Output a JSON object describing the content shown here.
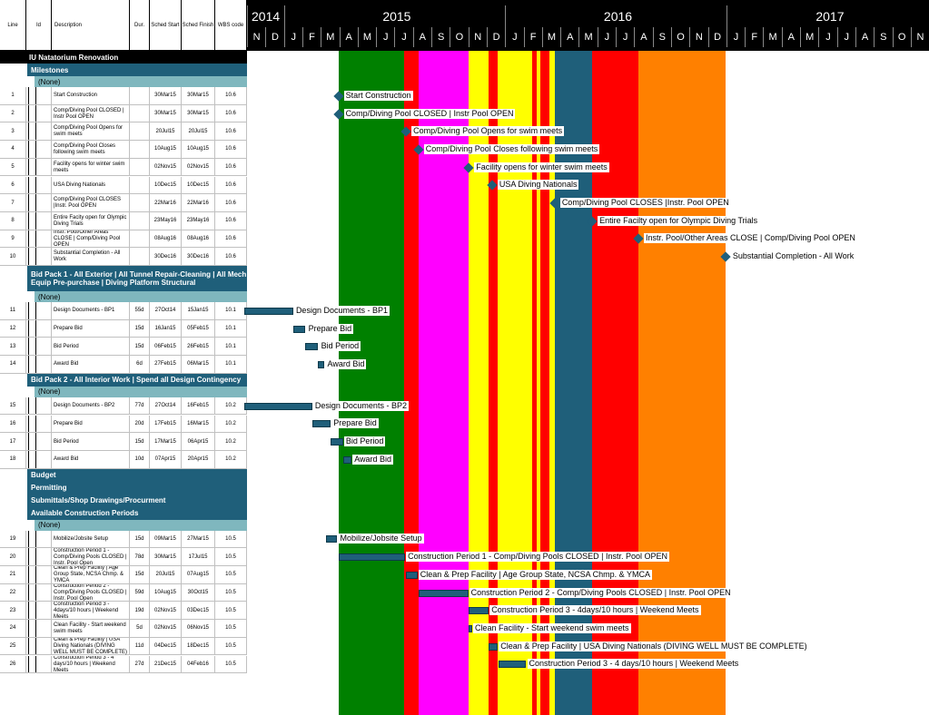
{
  "columns": {
    "line": "Line",
    "id": "Id",
    "description": "Description",
    "duration": "Dur.",
    "start": "Sched Start",
    "finish": "Sched Finish",
    "wbs": "WBS code"
  },
  "timeline": {
    "years": [
      "2014",
      "2015",
      "2016",
      "2017"
    ],
    "months": [
      "N",
      "D",
      "J",
      "F",
      "M",
      "A",
      "M",
      "J",
      "J",
      "A",
      "S",
      "O",
      "N",
      "D",
      "J",
      "F",
      "M",
      "A",
      "M",
      "J",
      "J",
      "A",
      "S",
      "O",
      "N",
      "D",
      "J",
      "F",
      "M",
      "A",
      "M",
      "J",
      "J",
      "A",
      "S",
      "O",
      "N"
    ],
    "period_colors": {
      "green": "#008000",
      "red": "#ff0000",
      "magenta": "#ff00ff",
      "yellow": "#ffff00",
      "blue": "#1f5f7a",
      "orange": "#ff8000"
    }
  },
  "project": {
    "title": "IU Natatorium Renovation"
  },
  "rows": [
    {
      "kind": "band",
      "label": "Milestones"
    },
    {
      "kind": "none",
      "label": "(None)"
    },
    {
      "kind": "task",
      "line": "1",
      "desc": "Start Construction",
      "dur": "",
      "start": "30Mar15",
      "finish": "30Mar15",
      "wbs": "10.6",
      "label": "Start Construction"
    },
    {
      "kind": "task",
      "line": "2",
      "desc": "Comp/Diving Pool CLOSED | Instr Pool OPEN",
      "dur": "",
      "start": "30Mar15",
      "finish": "30Mar15",
      "wbs": "10.6",
      "label": "Comp/Diving Pool CLOSED | Instr Pool OPEN"
    },
    {
      "kind": "task",
      "line": "3",
      "desc": "Comp/Diving Pool Opens for swim meets",
      "dur": "",
      "start": "20Jul15",
      "finish": "20Jul15",
      "wbs": "10.6",
      "label": "Comp/Diving Pool Opens for swim meets"
    },
    {
      "kind": "task",
      "line": "4",
      "desc": "Comp/Diving Pool Closes following swim meets",
      "dur": "",
      "start": "10Aug15",
      "finish": "10Aug15",
      "wbs": "10.6",
      "label": "Comp/Diving Pool Closes following swim meets"
    },
    {
      "kind": "task",
      "line": "5",
      "desc": "Facility opens for winter swim meets",
      "dur": "",
      "start": "02Nov15",
      "finish": "02Nov15",
      "wbs": "10.6",
      "label": "Facility opens for winter swim meets"
    },
    {
      "kind": "task",
      "line": "6",
      "desc": "USA Diving Nationals",
      "dur": "",
      "start": "10Dec15",
      "finish": "10Dec15",
      "wbs": "10.6",
      "label": "USA Diving Nationals"
    },
    {
      "kind": "task",
      "line": "7",
      "desc": "Comp/Diving Pool CLOSES |Instr. Pool OPEN",
      "dur": "",
      "start": "22Mar16",
      "finish": "22Mar16",
      "wbs": "10.6",
      "label": "Comp/Diving Pool CLOSES |Instr. Pool OPEN"
    },
    {
      "kind": "task",
      "line": "8",
      "desc": "Entire Facity open for Olympic Diving Trials",
      "dur": "",
      "start": "23May16",
      "finish": "23May16",
      "wbs": "10.6",
      "label": "Entire Facilty open for Olympic Diving Trials"
    },
    {
      "kind": "task",
      "line": "9",
      "desc": "Instr. Pool/Other Areas CLOSE | Comp/Diving Pool OPEN",
      "dur": "",
      "start": "08Aug16",
      "finish": "08Aug16",
      "wbs": "10.6",
      "label": "Instr. Pool/Other Areas CLOSE | Comp/Diving Pool OPEN"
    },
    {
      "kind": "task",
      "line": "10",
      "desc": "Substantial Completion - All Work",
      "dur": "",
      "start": "30Dec16",
      "finish": "30Dec16",
      "wbs": "10.6",
      "label": "Substantial Completion - All Work"
    },
    {
      "kind": "band",
      "label": "Bid Pack 1 - All Exterior | All Tunnel Repair-Cleaning | All Mech Equip Pre-purchase | Diving Platform Structural"
    },
    {
      "kind": "none",
      "label": "(None)"
    },
    {
      "kind": "task",
      "line": "11",
      "desc": "Design Documents - BP1",
      "dur": "55d",
      "start": "27Oct14",
      "finish": "15Jan15",
      "wbs": "10.1",
      "label": "Design Documents - BP1"
    },
    {
      "kind": "task",
      "line": "12",
      "desc": "Prepare Bid",
      "dur": "15d",
      "start": "16Jan15",
      "finish": "05Feb15",
      "wbs": "10.1",
      "label": "Prepare Bid"
    },
    {
      "kind": "task",
      "line": "13",
      "desc": "Bid Period",
      "dur": "15d",
      "start": "06Feb15",
      "finish": "26Feb15",
      "wbs": "10.1",
      "label": "Bid Period"
    },
    {
      "kind": "task",
      "line": "14",
      "desc": "Award Bid",
      "dur": "6d",
      "start": "27Feb15",
      "finish": "06Mar15",
      "wbs": "10.1",
      "label": "Award Bid"
    },
    {
      "kind": "band",
      "label": "Bid Pack 2 - All Interior Work | Spend all Design Contingency"
    },
    {
      "kind": "none",
      "label": "(None)"
    },
    {
      "kind": "task",
      "line": "15",
      "desc": "Design Documents - BP2",
      "dur": "77d",
      "start": "27Oct14",
      "finish": "16Feb15",
      "wbs": "10.2",
      "label": "Design Documents - BP2"
    },
    {
      "kind": "task",
      "line": "16",
      "desc": "Prepare Bid",
      "dur": "20d",
      "start": "17Feb15",
      "finish": "16Mar15",
      "wbs": "10.2",
      "label": "Prepare Bid"
    },
    {
      "kind": "task",
      "line": "17",
      "desc": "Bid Period",
      "dur": "15d",
      "start": "17Mar15",
      "finish": "06Apr15",
      "wbs": "10.2",
      "label": "Bid Period"
    },
    {
      "kind": "task",
      "line": "18",
      "desc": "Award Bid",
      "dur": "10d",
      "start": "07Apr15",
      "finish": "20Apr15",
      "wbs": "10.2",
      "label": "Award Bid"
    },
    {
      "kind": "band",
      "label": "Budget"
    },
    {
      "kind": "band",
      "label": "Permitting"
    },
    {
      "kind": "band",
      "label": "Submittals/Shop Drawings/Procurment"
    },
    {
      "kind": "band",
      "label": "Available Construction Periods"
    },
    {
      "kind": "none",
      "label": "(None)"
    },
    {
      "kind": "task",
      "line": "19",
      "desc": "Mobilize/Jobsite Setup",
      "dur": "15d",
      "start": "09Mar15",
      "finish": "27Mar15",
      "wbs": "10.5",
      "label": "Mobilize/Jobsite Setup"
    },
    {
      "kind": "task",
      "line": "20",
      "desc": "Construction Period 1 - Comp/Diving Pools CLOSED | Instr. Pool Open",
      "dur": "78d",
      "start": "30Mar15",
      "finish": "17Jul15",
      "wbs": "10.5",
      "label": "Construction Period 1 - Comp/Diving Pools CLOSED | Instr. Pool OPEN"
    },
    {
      "kind": "task",
      "line": "21",
      "desc": "Clean & Prep Facility | Age Group State, NCSA Chmp. & YMCA",
      "dur": "15d",
      "start": "20Jul15",
      "finish": "07Aug15",
      "wbs": "10.5",
      "label": "Clean & Prep Facility | Age Group State, NCSA Chmp. & YMCA"
    },
    {
      "kind": "task",
      "line": "22",
      "desc": "Construction Period 2 - Comp/Diving Pools CLOSED | Instr. Pool Open",
      "dur": "59d",
      "start": "10Aug15",
      "finish": "30Oct15",
      "wbs": "10.5",
      "label": "Construction Period 2 - Comp/Diving Pools CLOSED | Instr. Pool OPEN"
    },
    {
      "kind": "task",
      "line": "23",
      "desc": "Construction Period 3 - 4days/10 hours | Weekend Meets",
      "dur": "19d",
      "start": "02Nov15",
      "finish": "03Dec15",
      "wbs": "10.5",
      "label": "Construction Period 3 - 4days/10 hours | Weekend Meets"
    },
    {
      "kind": "task",
      "line": "24",
      "desc": "Clean Facility - Start weekend swim meets",
      "dur": "5d",
      "start": "02Nov15",
      "finish": "06Nov15",
      "wbs": "10.5",
      "label": "Clean Facility - Start weekend swim meets"
    },
    {
      "kind": "task",
      "line": "25",
      "desc": "Clean & Prep Facility | USA Diving Nationals (DIVING WELL MUST BE COMPLETE)",
      "dur": "11d",
      "start": "04Dec15",
      "finish": "18Dec15",
      "wbs": "10.5",
      "label": "Clean & Prep Facility | USA Diving Nationals (DIVING WELL MUST BE COMPLETE)"
    },
    {
      "kind": "task",
      "line": "26",
      "desc": "Construction Period 3 - 4 days/10 hours | Weekend Meets",
      "dur": "27d",
      "start": "21Dec15",
      "finish": "04Feb16",
      "wbs": "10.5",
      "label": "Construction Period 3 - 4 days/10 hours | Weekend Meets"
    }
  ]
}
